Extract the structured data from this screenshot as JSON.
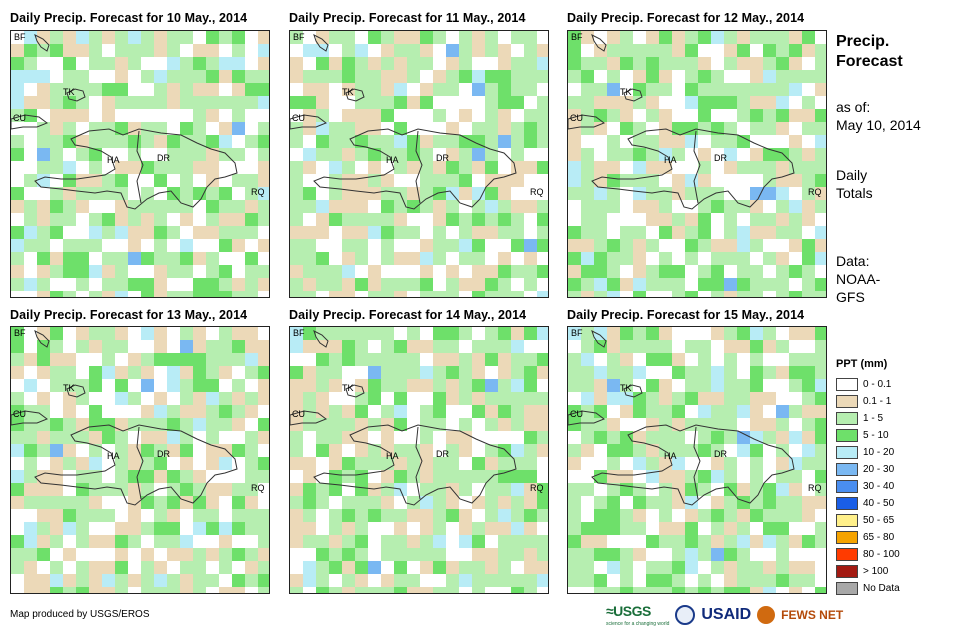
{
  "panels": [
    {
      "title": "Daily Precip. Forecast for 10 May., 2014",
      "seed": 3
    },
    {
      "title": "Daily Precip. Forecast for 11 May., 2014",
      "seed": 7
    },
    {
      "title": "Daily Precip. Forecast for 12 May., 2014",
      "seed": 11
    },
    {
      "title": "Daily Precip. Forecast for 13 May., 2014",
      "seed": 17
    },
    {
      "title": "Daily Precip. Forecast for 14 May., 2014",
      "seed": 23
    },
    {
      "title": "Daily Precip. Forecast for 15 May., 2014",
      "seed": 29
    }
  ],
  "place_labels": {
    "bf": "BF",
    "tk": "TK",
    "cu": "CU",
    "ha": "HA",
    "dr": "DR",
    "rq": "RQ"
  },
  "sidebar": {
    "title_line1": "Precip.",
    "title_line2": "Forecast",
    "asof_label": "as of:",
    "asof_date": "May 10, 2014",
    "totals_line1": "Daily",
    "totals_line2": "Totals",
    "data_line1": "Data:",
    "data_line2": "NOAA-",
    "data_line3": "GFS"
  },
  "legend": {
    "title": "PPT (mm)",
    "items": [
      {
        "label": "0 - 0.1",
        "color": "#ffffff"
      },
      {
        "label": "0.1 - 1",
        "color": "#ecd9b8"
      },
      {
        "label": "1 - 5",
        "color": "#b6eeb0"
      },
      {
        "label": "5 - 10",
        "color": "#6ee06a"
      },
      {
        "label": "10 - 20",
        "color": "#b8ecf6"
      },
      {
        "label": "20 - 30",
        "color": "#7ab8f2"
      },
      {
        "label": "30 - 40",
        "color": "#4a8ef0"
      },
      {
        "label": "40 - 50",
        "color": "#1a5ee6"
      },
      {
        "label": "50 - 65",
        "color": "#fff08a"
      },
      {
        "label": "65 - 80",
        "color": "#f5a300"
      },
      {
        "label": "80 - 100",
        "color": "#ff3b00"
      },
      {
        "label": "> 100",
        "color": "#a31a12"
      },
      {
        "label": "No Data",
        "color": "#a8a8a8"
      }
    ]
  },
  "footer": {
    "produced_by": "Map produced by USGS/EROS"
  },
  "logos": {
    "usgs": "≈USGS",
    "usgs_tagline": "science for a changing world",
    "usaid": "USAID",
    "fews": "FEWS NET"
  }
}
